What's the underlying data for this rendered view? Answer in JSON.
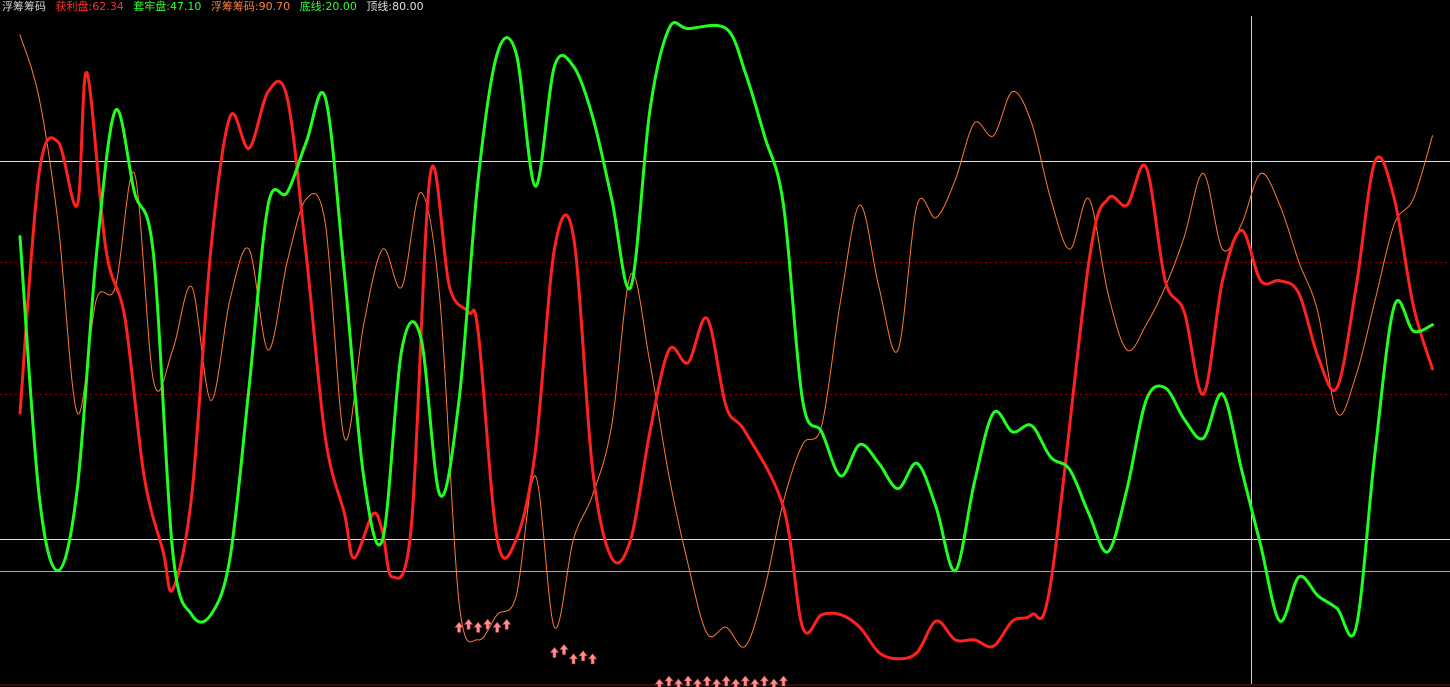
{
  "indicator": {
    "title": "浮筹筹码",
    "items": [
      {
        "label": "获利盘",
        "value": "62.34",
        "color": "#ff3030"
      },
      {
        "label": "套牢盘",
        "value": "47.10",
        "color": "#30ff30"
      },
      {
        "label": "浮筹筹码",
        "value": "90.70",
        "color": "#ff8040"
      },
      {
        "label": "底线",
        "value": "20.00",
        "color": "#30ff30"
      },
      {
        "label": "顶线",
        "value": "80.00",
        "color": "#e0e0e0"
      }
    ]
  },
  "chart_data": {
    "type": "line",
    "ylim": [
      -3,
      103
    ],
    "x_count": 150,
    "grid": false,
    "hlines": [
      {
        "value": 80,
        "color": "#e0e0e0",
        "style": "solid"
      },
      {
        "value": 20,
        "color": "#e0e0e0",
        "style": "solid"
      },
      {
        "value": 15,
        "color": "#30ff30",
        "style": "solid"
      },
      {
        "value": 64,
        "color": "#a00000",
        "style": "dotted"
      },
      {
        "value": 43,
        "color": "#a00000",
        "style": "dotted"
      }
    ],
    "crosshair_x_index": 129,
    "series": [
      {
        "name": "获利盘",
        "color": "#ff2020",
        "width": 3,
        "points": [
          [
            0,
            40
          ],
          [
            2,
            78
          ],
          [
            4,
            83
          ],
          [
            6,
            73
          ],
          [
            7,
            94
          ],
          [
            9,
            66
          ],
          [
            11,
            55
          ],
          [
            13,
            30
          ],
          [
            15,
            18
          ],
          [
            16,
            12
          ],
          [
            18,
            27
          ],
          [
            20,
            66
          ],
          [
            22,
            87
          ],
          [
            24,
            82
          ],
          [
            26,
            91
          ],
          [
            28,
            90
          ],
          [
            30,
            65
          ],
          [
            32,
            36
          ],
          [
            34,
            24
          ],
          [
            35,
            17
          ],
          [
            37,
            24
          ],
          [
            38,
            21
          ],
          [
            39,
            14
          ],
          [
            41,
            22
          ],
          [
            43,
            78
          ],
          [
            45,
            60
          ],
          [
            47,
            56
          ],
          [
            48,
            53
          ],
          [
            50,
            20
          ],
          [
            52,
            20
          ],
          [
            54,
            34
          ],
          [
            56,
            66
          ],
          [
            58,
            68
          ],
          [
            60,
            31
          ],
          [
            62,
            17
          ],
          [
            64,
            20
          ],
          [
            66,
            37
          ],
          [
            68,
            50
          ],
          [
            70,
            48
          ],
          [
            72,
            55
          ],
          [
            74,
            41
          ],
          [
            76,
            37
          ],
          [
            80,
            25
          ],
          [
            82,
            6
          ],
          [
            84,
            8
          ],
          [
            86,
            8
          ],
          [
            88,
            6
          ],
          [
            90,
            2
          ],
          [
            92,
            1
          ],
          [
            94,
            2
          ],
          [
            96,
            7
          ],
          [
            98,
            4
          ],
          [
            100,
            4
          ],
          [
            102,
            3
          ],
          [
            104,
            7
          ],
          [
            106,
            8
          ],
          [
            108,
            13
          ],
          [
            112,
            64
          ],
          [
            114,
            74
          ],
          [
            116,
            73
          ],
          [
            118,
            79
          ],
          [
            120,
            61
          ],
          [
            122,
            56
          ],
          [
            124,
            43
          ],
          [
            126,
            61
          ],
          [
            128,
            69
          ],
          [
            130,
            61
          ],
          [
            132,
            61
          ],
          [
            134,
            59
          ],
          [
            136,
            49
          ],
          [
            138,
            44
          ],
          [
            140,
            60
          ],
          [
            142,
            80
          ],
          [
            144,
            74
          ],
          [
            146,
            57
          ],
          [
            148,
            47
          ]
        ]
      },
      {
        "name": "套牢盘",
        "color": "#20ff20",
        "width": 3,
        "points": [
          [
            0,
            68
          ],
          [
            2,
            27
          ],
          [
            4,
            15
          ],
          [
            6,
            28
          ],
          [
            8,
            65
          ],
          [
            10,
            88
          ],
          [
            12,
            75
          ],
          [
            14,
            65
          ],
          [
            16,
            18
          ],
          [
            18,
            8
          ],
          [
            20,
            8
          ],
          [
            22,
            17
          ],
          [
            24,
            44
          ],
          [
            26,
            73
          ],
          [
            28,
            75
          ],
          [
            30,
            83
          ],
          [
            32,
            90
          ],
          [
            34,
            62
          ],
          [
            36,
            30
          ],
          [
            38,
            20
          ],
          [
            40,
            50
          ],
          [
            42,
            52
          ],
          [
            44,
            27
          ],
          [
            46,
            42
          ],
          [
            48,
            77
          ],
          [
            50,
            97
          ],
          [
            52,
            97
          ],
          [
            54,
            76
          ],
          [
            56,
            95
          ],
          [
            58,
            95
          ],
          [
            60,
            87
          ],
          [
            62,
            74
          ],
          [
            64,
            60
          ],
          [
            66,
            88
          ],
          [
            68,
            101
          ],
          [
            70,
            101
          ],
          [
            74,
            101
          ],
          [
            76,
            94
          ],
          [
            78,
            84
          ],
          [
            80,
            73
          ],
          [
            82,
            42
          ],
          [
            84,
            37
          ],
          [
            86,
            30
          ],
          [
            88,
            35
          ],
          [
            90,
            32
          ],
          [
            92,
            28
          ],
          [
            94,
            32
          ],
          [
            96,
            25
          ],
          [
            98,
            15
          ],
          [
            100,
            29
          ],
          [
            102,
            40
          ],
          [
            104,
            37
          ],
          [
            106,
            38
          ],
          [
            108,
            33
          ],
          [
            110,
            31
          ],
          [
            112,
            24
          ],
          [
            114,
            18
          ],
          [
            116,
            28
          ],
          [
            118,
            42
          ],
          [
            120,
            44
          ],
          [
            122,
            39
          ],
          [
            124,
            36
          ],
          [
            126,
            43
          ],
          [
            128,
            31
          ],
          [
            130,
            19
          ],
          [
            132,
            7
          ],
          [
            134,
            14
          ],
          [
            136,
            11
          ],
          [
            138,
            9
          ],
          [
            140,
            6
          ],
          [
            142,
            34
          ],
          [
            144,
            57
          ],
          [
            146,
            53
          ],
          [
            148,
            54
          ]
        ]
      },
      {
        "name": "浮筹筹码",
        "color": "#ff7a30",
        "width": 1,
        "points": [
          [
            0,
            100
          ],
          [
            2,
            90
          ],
          [
            4,
            70
          ],
          [
            6,
            40
          ],
          [
            8,
            58
          ],
          [
            10,
            60
          ],
          [
            12,
            78
          ],
          [
            14,
            45
          ],
          [
            16,
            50
          ],
          [
            18,
            60
          ],
          [
            20,
            42
          ],
          [
            22,
            58
          ],
          [
            24,
            66
          ],
          [
            26,
            50
          ],
          [
            28,
            64
          ],
          [
            30,
            74
          ],
          [
            32,
            70
          ],
          [
            34,
            36
          ],
          [
            36,
            54
          ],
          [
            38,
            66
          ],
          [
            40,
            60
          ],
          [
            42,
            75
          ],
          [
            44,
            58
          ],
          [
            46,
            10
          ],
          [
            48,
            4
          ],
          [
            50,
            8
          ],
          [
            52,
            11
          ],
          [
            54,
            30
          ],
          [
            56,
            6
          ],
          [
            58,
            20
          ],
          [
            60,
            27
          ],
          [
            62,
            38
          ],
          [
            64,
            62
          ],
          [
            66,
            48
          ],
          [
            68,
            30
          ],
          [
            70,
            16
          ],
          [
            72,
            5
          ],
          [
            74,
            6
          ],
          [
            76,
            3
          ],
          [
            78,
            12
          ],
          [
            80,
            26
          ],
          [
            82,
            35
          ],
          [
            84,
            38
          ],
          [
            86,
            58
          ],
          [
            88,
            73
          ],
          [
            90,
            60
          ],
          [
            92,
            50
          ],
          [
            94,
            73
          ],
          [
            96,
            71
          ],
          [
            98,
            77
          ],
          [
            100,
            86
          ],
          [
            102,
            84
          ],
          [
            104,
            91
          ],
          [
            106,
            86
          ],
          [
            108,
            74
          ],
          [
            110,
            66
          ],
          [
            112,
            74
          ],
          [
            114,
            59
          ],
          [
            116,
            50
          ],
          [
            118,
            54
          ],
          [
            120,
            60
          ],
          [
            122,
            68
          ],
          [
            124,
            78
          ],
          [
            126,
            66
          ],
          [
            128,
            70
          ],
          [
            130,
            78
          ],
          [
            132,
            73
          ],
          [
            134,
            64
          ],
          [
            136,
            56
          ],
          [
            138,
            40
          ],
          [
            140,
            46
          ],
          [
            142,
            58
          ],
          [
            144,
            70
          ],
          [
            146,
            74
          ],
          [
            148,
            84
          ]
        ]
      }
    ],
    "markers": {
      "color": "#ff9090",
      "groups": [
        {
          "start": 46,
          "end": 51,
          "value": 6
        },
        {
          "start": 56,
          "end": 57,
          "value": 2
        },
        {
          "start": 58,
          "end": 60,
          "value": 1
        },
        {
          "start": 67,
          "end": 80,
          "value": -3
        }
      ]
    }
  }
}
